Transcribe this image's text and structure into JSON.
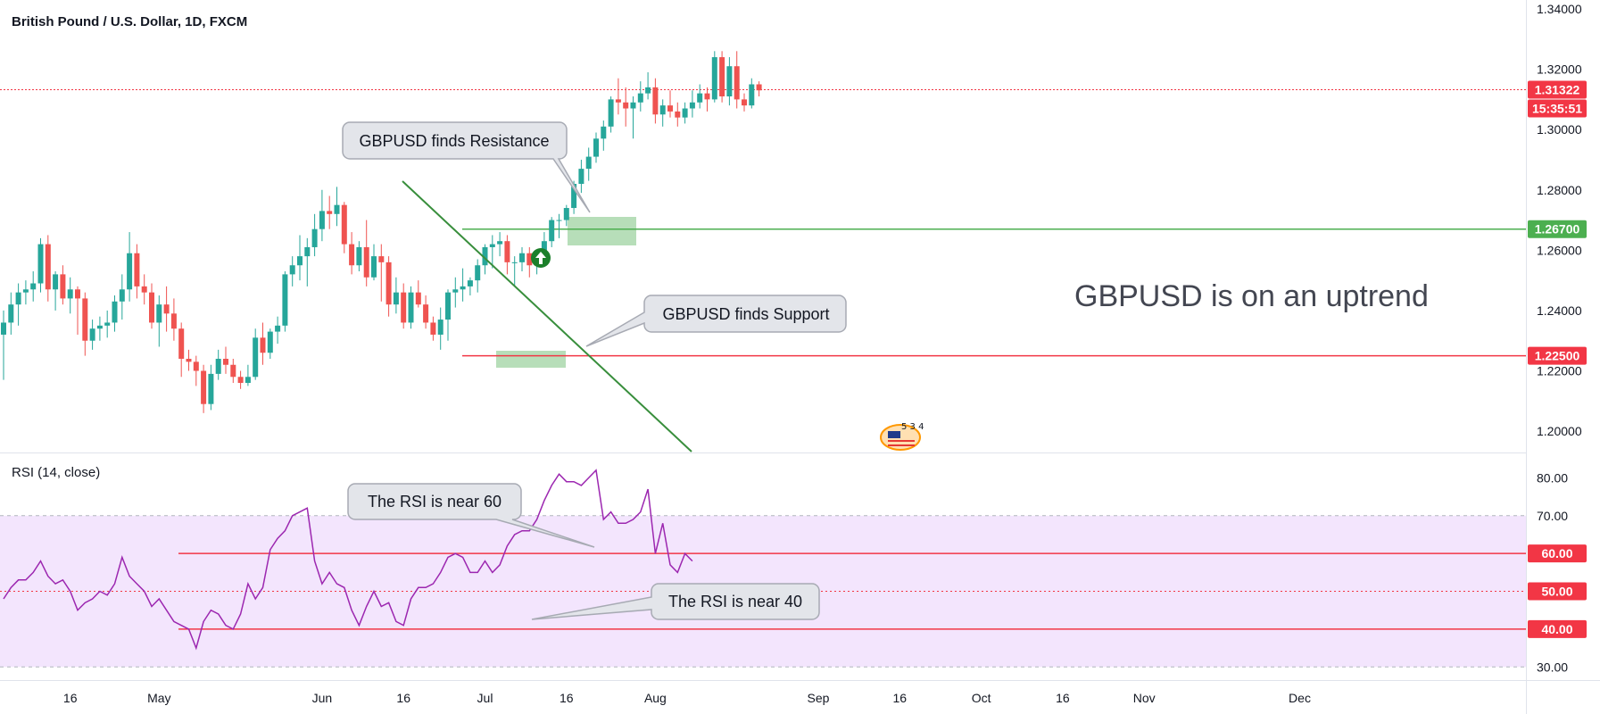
{
  "colors": {
    "up": "#26a69a",
    "down": "#ef5350",
    "green_line": "#4caf50",
    "red_line": "#f23645",
    "trendline": "#388e3c",
    "rsi_line": "#9c27b0",
    "rsi_band": "#f3e5fd",
    "callout_fill": "#e3e5ea",
    "callout_stroke": "#a7aab3",
    "zone_fill": "#a5d6a7"
  },
  "chart_data": [
    {
      "type": "candlestick",
      "title": "British Pound / U.S. Dollar, 1D, FXCM",
      "ylim": [
        1.195,
        1.34
      ],
      "y_ticks": [
        "1.34000",
        "1.32000",
        "1.30000",
        "1.28000",
        "1.26000",
        "1.24000",
        "1.22000",
        "1.20000"
      ],
      "y_tick_values": [
        1.34,
        1.32,
        1.3,
        1.28,
        1.26,
        1.24,
        1.22,
        1.2
      ],
      "candles": [
        {
          "o": 1.232,
          "h": 1.24,
          "l": 1.217,
          "c": 1.236
        },
        {
          "o": 1.236,
          "h": 1.246,
          "l": 1.232,
          "c": 1.242
        },
        {
          "o": 1.242,
          "h": 1.249,
          "l": 1.235,
          "c": 1.246
        },
        {
          "o": 1.246,
          "h": 1.25,
          "l": 1.242,
          "c": 1.247
        },
        {
          "o": 1.247,
          "h": 1.253,
          "l": 1.243,
          "c": 1.249
        },
        {
          "o": 1.249,
          "h": 1.264,
          "l": 1.246,
          "c": 1.262
        },
        {
          "o": 1.262,
          "h": 1.265,
          "l": 1.243,
          "c": 1.247
        },
        {
          "o": 1.247,
          "h": 1.253,
          "l": 1.24,
          "c": 1.252
        },
        {
          "o": 1.252,
          "h": 1.255,
          "l": 1.242,
          "c": 1.244
        },
        {
          "o": 1.244,
          "h": 1.251,
          "l": 1.239,
          "c": 1.247
        },
        {
          "o": 1.247,
          "h": 1.248,
          "l": 1.232,
          "c": 1.244
        },
        {
          "o": 1.244,
          "h": 1.246,
          "l": 1.225,
          "c": 1.23
        },
        {
          "o": 1.23,
          "h": 1.237,
          "l": 1.227,
          "c": 1.234
        },
        {
          "o": 1.234,
          "h": 1.238,
          "l": 1.23,
          "c": 1.235
        },
        {
          "o": 1.235,
          "h": 1.24,
          "l": 1.231,
          "c": 1.236
        },
        {
          "o": 1.236,
          "h": 1.245,
          "l": 1.233,
          "c": 1.243
        },
        {
          "o": 1.243,
          "h": 1.252,
          "l": 1.237,
          "c": 1.247
        },
        {
          "o": 1.247,
          "h": 1.266,
          "l": 1.243,
          "c": 1.259
        },
        {
          "o": 1.259,
          "h": 1.262,
          "l": 1.244,
          "c": 1.248
        },
        {
          "o": 1.248,
          "h": 1.252,
          "l": 1.242,
          "c": 1.246
        },
        {
          "o": 1.246,
          "h": 1.249,
          "l": 1.234,
          "c": 1.236
        },
        {
          "o": 1.236,
          "h": 1.245,
          "l": 1.228,
          "c": 1.242
        },
        {
          "o": 1.242,
          "h": 1.248,
          "l": 1.233,
          "c": 1.239
        },
        {
          "o": 1.239,
          "h": 1.244,
          "l": 1.23,
          "c": 1.234
        },
        {
          "o": 1.234,
          "h": 1.236,
          "l": 1.218,
          "c": 1.224
        },
        {
          "o": 1.224,
          "h": 1.227,
          "l": 1.22,
          "c": 1.223
        },
        {
          "o": 1.223,
          "h": 1.225,
          "l": 1.215,
          "c": 1.22
        },
        {
          "o": 1.22,
          "h": 1.222,
          "l": 1.206,
          "c": 1.209
        },
        {
          "o": 1.209,
          "h": 1.222,
          "l": 1.207,
          "c": 1.219
        },
        {
          "o": 1.219,
          "h": 1.227,
          "l": 1.217,
          "c": 1.224
        },
        {
          "o": 1.224,
          "h": 1.228,
          "l": 1.219,
          "c": 1.222
        },
        {
          "o": 1.222,
          "h": 1.224,
          "l": 1.216,
          "c": 1.218
        },
        {
          "o": 1.218,
          "h": 1.22,
          "l": 1.214,
          "c": 1.216
        },
        {
          "o": 1.216,
          "h": 1.222,
          "l": 1.215,
          "c": 1.218
        },
        {
          "o": 1.218,
          "h": 1.234,
          "l": 1.217,
          "c": 1.231
        },
        {
          "o": 1.231,
          "h": 1.236,
          "l": 1.222,
          "c": 1.226
        },
        {
          "o": 1.226,
          "h": 1.234,
          "l": 1.224,
          "c": 1.233
        },
        {
          "o": 1.233,
          "h": 1.238,
          "l": 1.229,
          "c": 1.235
        },
        {
          "o": 1.235,
          "h": 1.253,
          "l": 1.233,
          "c": 1.252
        },
        {
          "o": 1.252,
          "h": 1.258,
          "l": 1.248,
          "c": 1.255
        },
        {
          "o": 1.255,
          "h": 1.265,
          "l": 1.25,
          "c": 1.258
        },
        {
          "o": 1.258,
          "h": 1.264,
          "l": 1.248,
          "c": 1.261
        },
        {
          "o": 1.261,
          "h": 1.272,
          "l": 1.258,
          "c": 1.267
        },
        {
          "o": 1.267,
          "h": 1.28,
          "l": 1.263,
          "c": 1.273
        },
        {
          "o": 1.273,
          "h": 1.278,
          "l": 1.267,
          "c": 1.272
        },
        {
          "o": 1.272,
          "h": 1.281,
          "l": 1.268,
          "c": 1.275
        },
        {
          "o": 1.275,
          "h": 1.276,
          "l": 1.259,
          "c": 1.262
        },
        {
          "o": 1.262,
          "h": 1.266,
          "l": 1.252,
          "c": 1.255
        },
        {
          "o": 1.255,
          "h": 1.263,
          "l": 1.253,
          "c": 1.261
        },
        {
          "o": 1.261,
          "h": 1.27,
          "l": 1.248,
          "c": 1.251
        },
        {
          "o": 1.251,
          "h": 1.262,
          "l": 1.25,
          "c": 1.258
        },
        {
          "o": 1.258,
          "h": 1.262,
          "l": 1.243,
          "c": 1.256
        },
        {
          "o": 1.256,
          "h": 1.258,
          "l": 1.238,
          "c": 1.242
        },
        {
          "o": 1.242,
          "h": 1.251,
          "l": 1.239,
          "c": 1.246
        },
        {
          "o": 1.246,
          "h": 1.249,
          "l": 1.234,
          "c": 1.236
        },
        {
          "o": 1.236,
          "h": 1.248,
          "l": 1.234,
          "c": 1.246
        },
        {
          "o": 1.246,
          "h": 1.25,
          "l": 1.241,
          "c": 1.242
        },
        {
          "o": 1.242,
          "h": 1.245,
          "l": 1.234,
          "c": 1.236
        },
        {
          "o": 1.236,
          "h": 1.238,
          "l": 1.23,
          "c": 1.232
        },
        {
          "o": 1.232,
          "h": 1.241,
          "l": 1.227,
          "c": 1.237
        },
        {
          "o": 1.237,
          "h": 1.247,
          "l": 1.23,
          "c": 1.246
        },
        {
          "o": 1.246,
          "h": 1.251,
          "l": 1.241,
          "c": 1.247
        },
        {
          "o": 1.247,
          "h": 1.254,
          "l": 1.243,
          "c": 1.248
        },
        {
          "o": 1.248,
          "h": 1.251,
          "l": 1.245,
          "c": 1.25
        },
        {
          "o": 1.25,
          "h": 1.257,
          "l": 1.246,
          "c": 1.255
        },
        {
          "o": 1.255,
          "h": 1.262,
          "l": 1.252,
          "c": 1.261
        },
        {
          "o": 1.261,
          "h": 1.265,
          "l": 1.254,
          "c": 1.262
        },
        {
          "o": 1.262,
          "h": 1.266,
          "l": 1.258,
          "c": 1.263
        },
        {
          "o": 1.263,
          "h": 1.265,
          "l": 1.252,
          "c": 1.256
        },
        {
          "o": 1.256,
          "h": 1.258,
          "l": 1.248,
          "c": 1.256
        },
        {
          "o": 1.256,
          "h": 1.261,
          "l": 1.253,
          "c": 1.259
        },
        {
          "o": 1.259,
          "h": 1.261,
          "l": 1.251,
          "c": 1.255
        },
        {
          "o": 1.255,
          "h": 1.259,
          "l": 1.252,
          "c": 1.257
        },
        {
          "o": 1.257,
          "h": 1.266,
          "l": 1.255,
          "c": 1.263
        },
        {
          "o": 1.263,
          "h": 1.271,
          "l": 1.261,
          "c": 1.27
        },
        {
          "o": 1.27,
          "h": 1.272,
          "l": 1.264,
          "c": 1.27
        },
        {
          "o": 1.27,
          "h": 1.275,
          "l": 1.268,
          "c": 1.274
        },
        {
          "o": 1.274,
          "h": 1.283,
          "l": 1.272,
          "c": 1.282
        },
        {
          "o": 1.282,
          "h": 1.29,
          "l": 1.279,
          "c": 1.287
        },
        {
          "o": 1.287,
          "h": 1.294,
          "l": 1.283,
          "c": 1.291
        },
        {
          "o": 1.291,
          "h": 1.299,
          "l": 1.289,
          "c": 1.297
        },
        {
          "o": 1.297,
          "h": 1.303,
          "l": 1.293,
          "c": 1.301
        },
        {
          "o": 1.301,
          "h": 1.311,
          "l": 1.299,
          "c": 1.31
        },
        {
          "o": 1.31,
          "h": 1.317,
          "l": 1.305,
          "c": 1.309
        },
        {
          "o": 1.309,
          "h": 1.314,
          "l": 1.301,
          "c": 1.307
        },
        {
          "o": 1.307,
          "h": 1.311,
          "l": 1.297,
          "c": 1.309
        },
        {
          "o": 1.309,
          "h": 1.316,
          "l": 1.306,
          "c": 1.312
        },
        {
          "o": 1.312,
          "h": 1.319,
          "l": 1.31,
          "c": 1.314
        },
        {
          "o": 1.314,
          "h": 1.317,
          "l": 1.302,
          "c": 1.305
        },
        {
          "o": 1.305,
          "h": 1.31,
          "l": 1.301,
          "c": 1.308
        },
        {
          "o": 1.308,
          "h": 1.313,
          "l": 1.304,
          "c": 1.306
        },
        {
          "o": 1.306,
          "h": 1.309,
          "l": 1.301,
          "c": 1.304
        },
        {
          "o": 1.304,
          "h": 1.309,
          "l": 1.302,
          "c": 1.307
        },
        {
          "o": 1.307,
          "h": 1.313,
          "l": 1.304,
          "c": 1.309
        },
        {
          "o": 1.309,
          "h": 1.315,
          "l": 1.307,
          "c": 1.312
        },
        {
          "o": 1.312,
          "h": 1.314,
          "l": 1.306,
          "c": 1.31
        },
        {
          "o": 1.31,
          "h": 1.326,
          "l": 1.309,
          "c": 1.324
        },
        {
          "o": 1.324,
          "h": 1.326,
          "l": 1.309,
          "c": 1.311
        },
        {
          "o": 1.311,
          "h": 1.324,
          "l": 1.308,
          "c": 1.321
        },
        {
          "o": 1.321,
          "h": 1.326,
          "l": 1.307,
          "c": 1.31
        },
        {
          "o": 1.31,
          "h": 1.312,
          "l": 1.306,
          "c": 1.308
        },
        {
          "o": 1.308,
          "h": 1.317,
          "l": 1.307,
          "c": 1.315
        },
        {
          "o": 1.315,
          "h": 1.316,
          "l": 1.311,
          "c": 1.313
        }
      ],
      "last_price": 1.31322,
      "last_price_label": "1.31322",
      "countdown_label": "15:35:51",
      "horizontal_levels": [
        {
          "value": 1.267,
          "label": "1.26700",
          "color": "green"
        },
        {
          "value": 1.225,
          "label": "1.22500",
          "color": "red"
        }
      ],
      "annotations": [
        "GBPUSD finds Resistance",
        "GBPUSD finds Support",
        "GBPUSD is on an uptrend"
      ]
    },
    {
      "type": "line",
      "title": "RSI (14, close)",
      "ylim": [
        27,
        86
      ],
      "y_ticks": [
        "80.00",
        "70.00",
        "30.00"
      ],
      "y_tick_values": [
        80,
        70,
        30
      ],
      "band": [
        30,
        70
      ],
      "series": [
        {
          "values": [
            48,
            51,
            53,
            53,
            55,
            58,
            54,
            52,
            53,
            50,
            45,
            47,
            48,
            50,
            49,
            52,
            59,
            54,
            52,
            50,
            46,
            48,
            45,
            42,
            41,
            40,
            35,
            42,
            45,
            44,
            41,
            40,
            44,
            52,
            48,
            51,
            61,
            64,
            66,
            70,
            71,
            72,
            58,
            52,
            55,
            52,
            51,
            45,
            41,
            46,
            50,
            46,
            47,
            42,
            41,
            48,
            51,
            51,
            52,
            55,
            59,
            60,
            59,
            55,
            55,
            58,
            55,
            57,
            62,
            65,
            66,
            66,
            69,
            74,
            78,
            81,
            79,
            79,
            78,
            80,
            82,
            69,
            71,
            68,
            68,
            69,
            71,
            77,
            60,
            68,
            57,
            55,
            60,
            58
          ]
        }
      ],
      "horizontal_levels": [
        {
          "value": 60,
          "label": "60.00"
        },
        {
          "value": 50,
          "label": "50.00"
        },
        {
          "value": 40,
          "label": "40.00"
        }
      ],
      "annotations": [
        "The RSI is near 60",
        "The RSI is near 40"
      ]
    }
  ],
  "x_axis": {
    "ticks": [
      {
        "label": "16",
        "pos": 9
      },
      {
        "label": "May",
        "pos": 21
      },
      {
        "label": "Jun",
        "pos": 43
      },
      {
        "label": "16",
        "pos": 54
      },
      {
        "label": "Jul",
        "pos": 65
      },
      {
        "label": "16",
        "pos": 76
      },
      {
        "label": "Aug",
        "pos": 88
      },
      {
        "label": "Sep",
        "pos": 110
      },
      {
        "label": "16",
        "pos": 121
      },
      {
        "label": "Oct",
        "pos": 132
      },
      {
        "label": "16",
        "pos": 143
      },
      {
        "label": "Nov",
        "pos": 154
      },
      {
        "label": "Dec",
        "pos": 175
      }
    ]
  }
}
